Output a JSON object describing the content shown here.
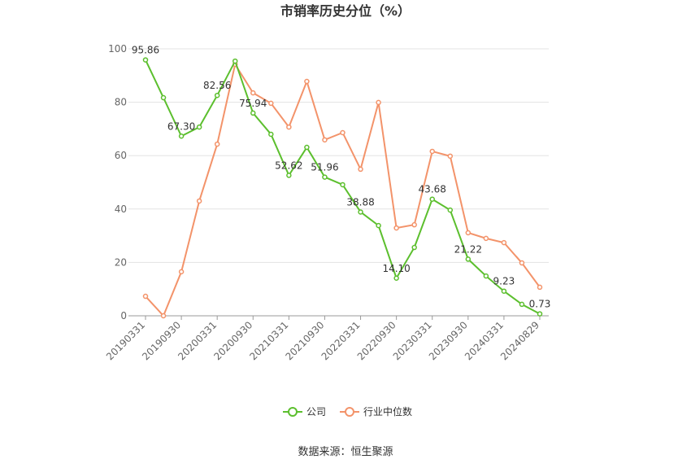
{
  "chart_data": {
    "type": "line",
    "title": "市销率历史分位（%）",
    "categories": [
      "20190331",
      null,
      "20190930",
      null,
      "20200331",
      null,
      "20200930",
      null,
      "20210331",
      null,
      "20210930",
      null,
      "20220331",
      null,
      "20220930",
      null,
      "20230331",
      null,
      "20230930",
      null,
      "20240331",
      null,
      "20240829"
    ],
    "series": [
      {
        "name": "公司",
        "color": "#5cbf2e",
        "values": [
          95.86,
          81.7,
          67.3,
          70.7,
          82.56,
          95.4,
          75.94,
          68,
          52.62,
          63.1,
          51.96,
          49.1,
          38.88,
          33.8,
          14.1,
          25.6,
          43.68,
          39.6,
          21.22,
          14.9,
          9.23,
          4.3,
          0.73
        ],
        "value_labels": [
          "95.86",
          null,
          "67.30",
          null,
          "82.56",
          null,
          "75.94",
          null,
          "52.62",
          null,
          "51.96",
          null,
          "38.88",
          null,
          "14.10",
          null,
          "43.68",
          null,
          "21.22",
          null,
          "9.23",
          null,
          "0.73"
        ]
      },
      {
        "name": "行业中位数",
        "color": "#f3936a",
        "values": [
          7.3,
          0,
          16.5,
          43,
          64.3,
          94.2,
          83.5,
          79.6,
          70.7,
          87.8,
          65.9,
          68.6,
          54.9,
          79.9,
          32.9,
          34.1,
          61.6,
          59.8,
          31.1,
          29,
          27.4,
          19.8,
          10.7
        ]
      }
    ],
    "ylim": [
      0,
      100
    ],
    "yticks": [
      0,
      20,
      40,
      60,
      80,
      100
    ],
    "grid": true,
    "legend": "bottom",
    "source": "数据来源：恒生聚源"
  }
}
